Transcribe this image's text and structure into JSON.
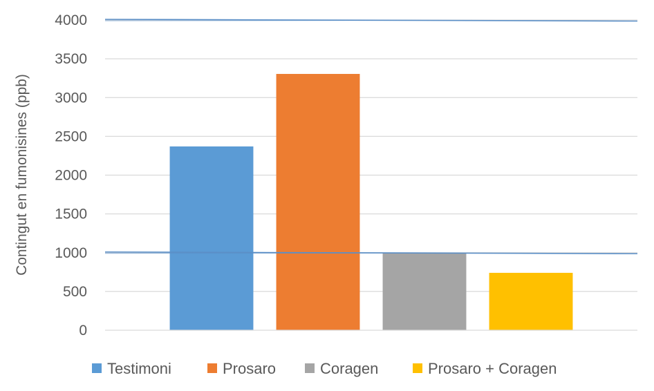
{
  "chart_data": {
    "type": "bar",
    "categories": [
      "Testimoni",
      "Prosaro",
      "Coragen",
      "Prosaro + Coragen"
    ],
    "values": [
      2370,
      3305,
      995,
      740
    ],
    "colors": [
      "#5b9bd5",
      "#ed7d31",
      "#a5a5a5",
      "#ffc000"
    ],
    "ylabel": "Contingut en fumonisines (ppb)",
    "ylim": [
      0,
      4000
    ],
    "yticks": [
      0,
      500,
      1000,
      1500,
      2000,
      2500,
      3000,
      3500,
      4000
    ],
    "grid": true,
    "legend": "bottom",
    "annotation_lines": [
      4000,
      1000
    ],
    "annotation_color": "#5b8fc7"
  }
}
